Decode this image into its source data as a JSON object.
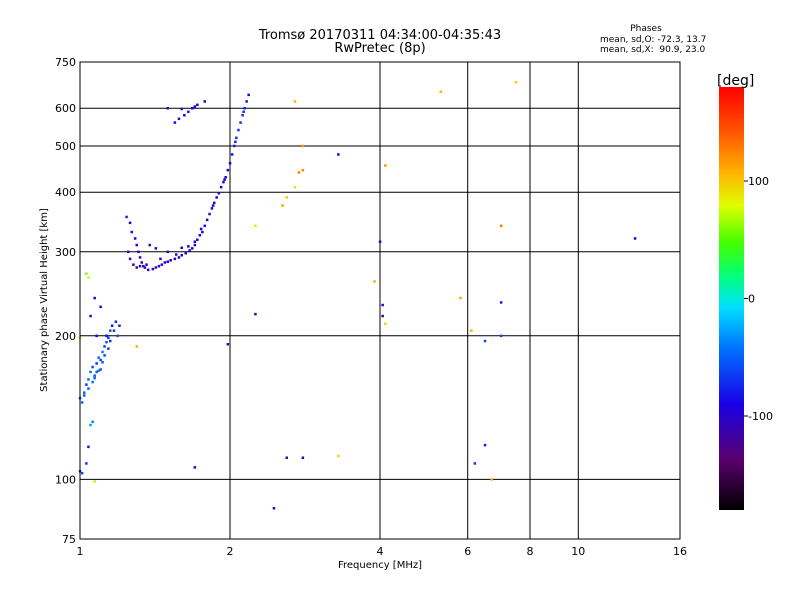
{
  "title": "Tromsø 20170311 04:34:00-04:35:43",
  "subtitle": "RwPretec (8p)",
  "stats": {
    "heading": "Phases",
    "o_line": "mean, sd,O: -72.3, 13.7",
    "x_line": "mean, sd,X:  90.9, 23.0"
  },
  "colorbar": {
    "title": "[deg]",
    "range": [
      -180,
      180
    ],
    "tick_values": [
      100,
      0,
      -100
    ],
    "tick_labels": [
      "100",
      "0",
      "-100"
    ]
  },
  "chart_data": {
    "type": "scatter",
    "xlabel": "Frequency [MHz]",
    "ylabel": "Stationary phase Virtual Height [km]",
    "xscale": "log",
    "yscale": "log",
    "xlim": [
      1,
      16
    ],
    "ylim": [
      75,
      750
    ],
    "xticks": [
      1,
      2,
      4,
      6,
      8,
      10,
      16
    ],
    "xtick_labels": [
      "1",
      "2",
      "4",
      "6",
      "8",
      "10",
      "16"
    ],
    "yticks": [
      75,
      100,
      200,
      300,
      400,
      500,
      600,
      750
    ],
    "ytick_labels": [
      "75",
      "100",
      "200",
      "300",
      "400",
      "500",
      "600",
      "750"
    ],
    "grid": true,
    "points": [
      [
        1.0,
        148,
        -60
      ],
      [
        1.02,
        150,
        -55
      ],
      [
        1.03,
        158,
        -65
      ],
      [
        1.04,
        162,
        -50
      ],
      [
        1.05,
        168,
        -45
      ],
      [
        1.06,
        172,
        -60
      ],
      [
        1.07,
        165,
        -55
      ],
      [
        1.08,
        175,
        -70
      ],
      [
        1.09,
        180,
        -48
      ],
      [
        1.1,
        178,
        -62
      ],
      [
        1.11,
        185,
        -40
      ],
      [
        1.12,
        190,
        -66
      ],
      [
        1.13,
        194,
        -58
      ],
      [
        1.14,
        198,
        -72
      ],
      [
        1.15,
        205,
        -52
      ],
      [
        1.16,
        210,
        -80
      ],
      [
        1.18,
        214,
        -75
      ],
      [
        1.06,
        160,
        -45
      ],
      [
        1.08,
        168,
        -50
      ],
      [
        1.1,
        170,
        -58
      ],
      [
        1.12,
        182,
        -62
      ],
      [
        1.04,
        155,
        -52
      ],
      [
        1.02,
        152,
        -48
      ],
      [
        1.01,
        145,
        -50
      ],
      [
        1.13,
        200,
        -85
      ],
      [
        1.15,
        195,
        -70
      ],
      [
        1.17,
        205,
        -65
      ],
      [
        1.19,
        200,
        -60
      ],
      [
        1.14,
        188,
        -66
      ],
      [
        1.11,
        176,
        -54
      ],
      [
        1.09,
        169,
        -47
      ],
      [
        1.07,
        163,
        -50
      ],
      [
        1.2,
        210,
        -75
      ],
      [
        1.03,
        270,
        60
      ],
      [
        1.04,
        265,
        70
      ],
      [
        1.07,
        240,
        -100
      ],
      [
        1.1,
        230,
        -110
      ],
      [
        1.05,
        220,
        -115
      ],
      [
        1.08,
        200,
        -95
      ],
      [
        1.0,
        198,
        90
      ],
      [
        1.05,
        130,
        -30
      ],
      [
        1.06,
        132,
        -40
      ],
      [
        1.0,
        104,
        -75
      ],
      [
        1.01,
        103,
        -60
      ],
      [
        1.03,
        108,
        -70
      ],
      [
        1.04,
        117,
        -80
      ],
      [
        1.07,
        99,
        90
      ],
      [
        1.3,
        190,
        110
      ],
      [
        1.24,
        355,
        -80
      ],
      [
        1.26,
        345,
        -90
      ],
      [
        1.27,
        330,
        -85
      ],
      [
        1.29,
        320,
        -95
      ],
      [
        1.3,
        310,
        -100
      ],
      [
        1.31,
        300,
        -105
      ],
      [
        1.32,
        292,
        -110
      ],
      [
        1.33,
        285,
        -115
      ],
      [
        1.34,
        280,
        -100
      ],
      [
        1.35,
        278,
        -95
      ],
      [
        1.37,
        275,
        -105
      ],
      [
        1.4,
        276,
        -90
      ],
      [
        1.42,
        278,
        -110
      ],
      [
        1.44,
        280,
        -100
      ],
      [
        1.46,
        282,
        -95
      ],
      [
        1.48,
        285,
        -105
      ],
      [
        1.5,
        286,
        -100
      ],
      [
        1.52,
        288,
        -90
      ],
      [
        1.55,
        290,
        -110
      ],
      [
        1.58,
        292,
        -105
      ],
      [
        1.6,
        295,
        -95
      ],
      [
        1.63,
        298,
        -100
      ],
      [
        1.66,
        302,
        -90
      ],
      [
        1.68,
        305,
        -110
      ],
      [
        1.7,
        310,
        -100
      ],
      [
        1.72,
        318,
        -95
      ],
      [
        1.74,
        325,
        -105
      ],
      [
        1.76,
        330,
        -100
      ],
      [
        1.78,
        340,
        -90
      ],
      [
        1.8,
        350,
        -110
      ],
      [
        1.82,
        360,
        -95
      ],
      [
        1.84,
        370,
        -100
      ],
      [
        1.86,
        380,
        -105
      ],
      [
        1.88,
        390,
        -95
      ],
      [
        1.9,
        398,
        -100
      ],
      [
        1.92,
        410,
        -90
      ],
      [
        1.94,
        420,
        -110
      ],
      [
        1.96,
        430,
        -100
      ],
      [
        1.98,
        445,
        -95
      ],
      [
        2.0,
        460,
        -90
      ],
      [
        2.02,
        480,
        -85
      ],
      [
        2.04,
        500,
        -80
      ],
      [
        2.06,
        520,
        -75
      ],
      [
        2.08,
        540,
        -70
      ],
      [
        2.1,
        560,
        -72
      ],
      [
        2.12,
        580,
        -68
      ],
      [
        2.14,
        600,
        -78
      ],
      [
        2.16,
        620,
        -82
      ],
      [
        2.18,
        640,
        -88
      ],
      [
        1.25,
        300,
        -115
      ],
      [
        1.26,
        290,
        -120
      ],
      [
        1.28,
        282,
        -110
      ],
      [
        1.3,
        278,
        -118
      ],
      [
        1.32,
        280,
        -112
      ],
      [
        1.36,
        282,
        -108
      ],
      [
        1.45,
        290,
        -98
      ],
      [
        1.56,
        296,
        -102
      ],
      [
        1.65,
        308,
        -96
      ],
      [
        1.75,
        335,
        -92
      ],
      [
        1.85,
        375,
        -98
      ],
      [
        1.95,
        425,
        -90
      ],
      [
        2.05,
        510,
        -78
      ],
      [
        2.13,
        590,
        -72
      ],
      [
        1.38,
        310,
        -100
      ],
      [
        1.42,
        305,
        -95
      ],
      [
        1.5,
        300,
        -100
      ],
      [
        1.6,
        306,
        -92
      ],
      [
        1.7,
        315,
        -98
      ],
      [
        1.55,
        560,
        -90
      ],
      [
        1.58,
        570,
        -85
      ],
      [
        1.62,
        580,
        -88
      ],
      [
        1.65,
        590,
        -80
      ],
      [
        1.68,
        600,
        -92
      ],
      [
        1.7,
        605,
        -95
      ],
      [
        1.72,
        610,
        -90
      ],
      [
        1.5,
        600,
        -110
      ],
      [
        1.6,
        598,
        -100
      ],
      [
        1.78,
        620,
        -120
      ],
      [
        2.7,
        620,
        110
      ],
      [
        2.8,
        500,
        120
      ],
      [
        2.75,
        440,
        130
      ],
      [
        2.6,
        390,
        100
      ],
      [
        2.7,
        410,
        95
      ],
      [
        2.55,
        375,
        115
      ],
      [
        2.25,
        340,
        90
      ],
      [
        2.8,
        445,
        125
      ],
      [
        3.3,
        480,
        -90
      ],
      [
        4.1,
        455,
        120
      ],
      [
        4.0,
        315,
        -95
      ],
      [
        5.3,
        650,
        110
      ],
      [
        7.5,
        680,
        100
      ],
      [
        7.0,
        340,
        130
      ],
      [
        3.9,
        260,
        110
      ],
      [
        4.05,
        232,
        -100
      ],
      [
        4.05,
        220,
        -150
      ],
      [
        4.1,
        212,
        95
      ],
      [
        2.25,
        222,
        -110
      ],
      [
        1.98,
        192,
        -115
      ],
      [
        5.8,
        240,
        115
      ],
      [
        6.1,
        205,
        110
      ],
      [
        6.5,
        195,
        -60
      ],
      [
        7.0,
        235,
        -80
      ],
      [
        7.0,
        200,
        -60
      ],
      [
        6.2,
        108,
        -70
      ],
      [
        6.5,
        118,
        -80
      ],
      [
        6.7,
        100,
        110
      ],
      [
        3.3,
        112,
        95
      ],
      [
        2.6,
        111,
        -120
      ],
      [
        2.8,
        111,
        -100
      ],
      [
        2.45,
        87,
        -110
      ],
      [
        1.7,
        106,
        -100
      ],
      [
        13.0,
        320,
        -90
      ]
    ]
  }
}
